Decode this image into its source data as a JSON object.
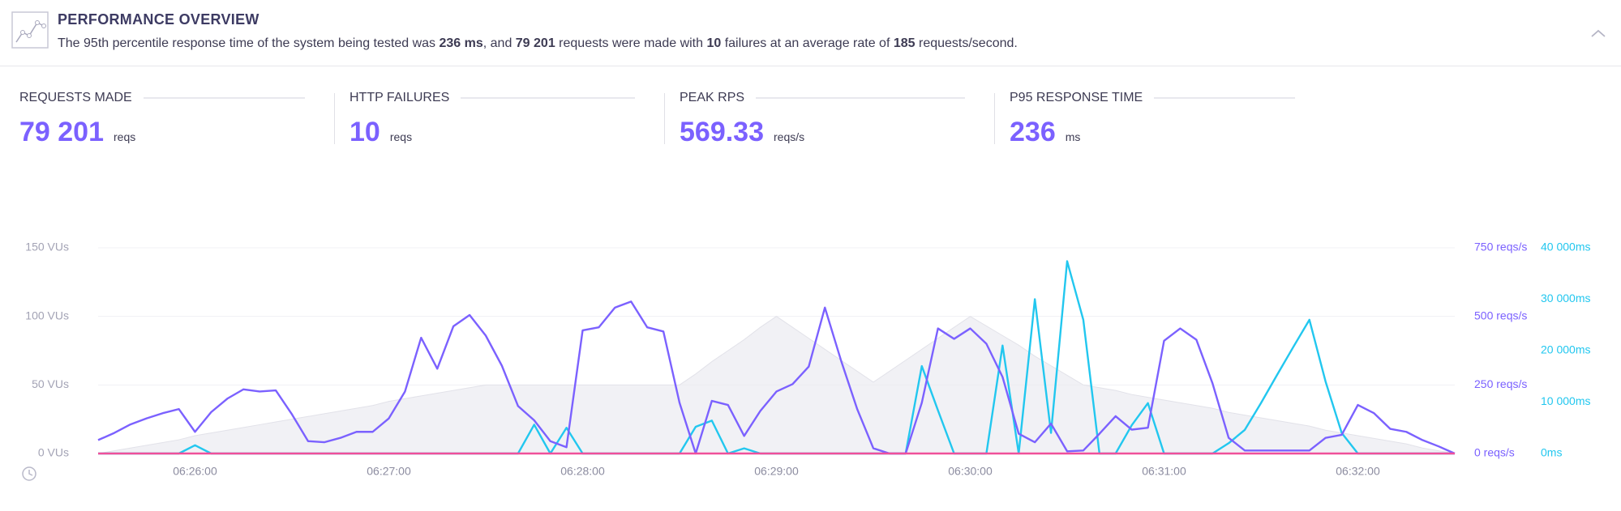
{
  "header": {
    "title": "PERFORMANCE OVERVIEW",
    "summary": [
      {
        "text": "The 95th percentile response time of the system being tested was ",
        "bold": false
      },
      {
        "text": "236 ms",
        "bold": true
      },
      {
        "text": ", and ",
        "bold": false
      },
      {
        "text": "79 201",
        "bold": true
      },
      {
        "text": " requests were made with ",
        "bold": false
      },
      {
        "text": "10",
        "bold": true
      },
      {
        "text": " failures at an average rate of ",
        "bold": false
      },
      {
        "text": "185",
        "bold": true
      },
      {
        "text": " requests/second.",
        "bold": false
      }
    ]
  },
  "stats": [
    {
      "label": "REQUESTS MADE",
      "value": "79 201",
      "unit": "reqs"
    },
    {
      "label": "HTTP FAILURES",
      "value": "10",
      "unit": "reqs"
    },
    {
      "label": "PEAK RPS",
      "value": "569.33",
      "unit": "reqs/s"
    },
    {
      "label": "P95 RESPONSE TIME",
      "value": "236",
      "unit": "ms"
    }
  ],
  "chart_data": {
    "type": "line",
    "x": [
      "06:25:30",
      "06:25:35",
      "06:25:40",
      "06:25:45",
      "06:25:50",
      "06:25:55",
      "06:26:00",
      "06:26:05",
      "06:26:10",
      "06:26:15",
      "06:26:20",
      "06:26:25",
      "06:26:30",
      "06:26:35",
      "06:26:40",
      "06:26:45",
      "06:26:50",
      "06:26:55",
      "06:27:00",
      "06:27:05",
      "06:27:10",
      "06:27:15",
      "06:27:20",
      "06:27:25",
      "06:27:30",
      "06:27:35",
      "06:27:40",
      "06:27:45",
      "06:27:50",
      "06:27:55",
      "06:28:00",
      "06:28:05",
      "06:28:10",
      "06:28:15",
      "06:28:20",
      "06:28:25",
      "06:28:30",
      "06:28:35",
      "06:28:40",
      "06:28:45",
      "06:28:50",
      "06:28:55",
      "06:29:00",
      "06:29:05",
      "06:29:10",
      "06:29:15",
      "06:29:20",
      "06:29:25",
      "06:29:30",
      "06:29:35",
      "06:29:40",
      "06:29:45",
      "06:29:50",
      "06:29:55",
      "06:30:00",
      "06:30:05",
      "06:30:10",
      "06:30:15",
      "06:30:20",
      "06:30:25",
      "06:30:30",
      "06:30:35",
      "06:30:40",
      "06:30:45",
      "06:30:50",
      "06:30:55",
      "06:31:00",
      "06:31:05",
      "06:31:10",
      "06:31:15",
      "06:31:20",
      "06:31:25",
      "06:31:30",
      "06:31:35",
      "06:31:40",
      "06:31:45",
      "06:31:50",
      "06:31:55",
      "06:32:00",
      "06:32:05",
      "06:32:10",
      "06:32:15",
      "06:32:20",
      "06:32:25",
      "06:32:30"
    ],
    "xlim": [
      "06:25:30",
      "06:32:30"
    ],
    "xticks": [
      "06:26:00",
      "06:27:00",
      "06:28:00",
      "06:29:00",
      "06:30:00",
      "06:31:00",
      "06:32:00"
    ],
    "ylim": [
      0,
      150
    ],
    "yticks": [
      {
        "value": 0,
        "label": "0 VUs"
      },
      {
        "value": 50,
        "label": "50 VUs"
      },
      {
        "value": 100,
        "label": "100 VUs"
      },
      {
        "value": 150,
        "label": "150 VUs"
      }
    ],
    "y2lim": [
      0,
      750
    ],
    "y2ticks": [
      {
        "value": 0,
        "label": "0 reqs/s"
      },
      {
        "value": 250,
        "label": "250 reqs/s"
      },
      {
        "value": 500,
        "label": "500 reqs/s"
      },
      {
        "value": 750,
        "label": "750 reqs/s"
      }
    ],
    "y3lim": [
      0,
      40000
    ],
    "y3ticks": [
      {
        "value": 0,
        "label": "0ms"
      },
      {
        "value": 10000,
        "label": "10 000ms"
      },
      {
        "value": 20000,
        "label": "20 000ms"
      },
      {
        "value": 30000,
        "label": "30 000ms"
      },
      {
        "value": 40000,
        "label": "40 000ms"
      }
    ],
    "grid": true,
    "series": [
      {
        "type": "area",
        "color": "#ececf1",
        "values": [
          0,
          2,
          4,
          6,
          8,
          10,
          13,
          15,
          17,
          19,
          21,
          23,
          25,
          27,
          29,
          31,
          33,
          35,
          38,
          40,
          42,
          44,
          46,
          48,
          50,
          50,
          50,
          50,
          50,
          50,
          50,
          50,
          50,
          50,
          50,
          50,
          50,
          58,
          67,
          75,
          83,
          92,
          100,
          92,
          84,
          76,
          68,
          60,
          52,
          60,
          68,
          76,
          84,
          92,
          100,
          93,
          86,
          79,
          71,
          64,
          57,
          50,
          48,
          46,
          43,
          41,
          39,
          37,
          35,
          33,
          30,
          28,
          26,
          24,
          22,
          20,
          17,
          15,
          13,
          11,
          9,
          7,
          4,
          2,
          0
        ]
      },
      {
        "type": "line",
        "color": "#22c7ef",
        "axis": "y3",
        "values": [
          0,
          0,
          0,
          0,
          0,
          0,
          1600,
          0,
          0,
          0,
          0,
          0,
          0,
          0,
          0,
          0,
          0,
          0,
          0,
          0,
          0,
          0,
          0,
          0,
          0,
          0,
          0,
          5600,
          0,
          5000,
          0,
          0,
          0,
          0,
          0,
          0,
          0,
          5200,
          6400,
          0,
          1000,
          0,
          0,
          0,
          0,
          0,
          0,
          0,
          0,
          0,
          0,
          17000,
          8400,
          0,
          0,
          0,
          21000,
          0,
          30000,
          4000,
          37400,
          26000,
          0,
          0,
          5500,
          9800,
          0,
          0,
          0,
          0,
          2000,
          4600,
          9800,
          15300,
          20700,
          26000,
          14000,
          4000,
          0,
          0,
          0,
          0,
          0,
          0,
          0
        ]
      },
      {
        "type": "line",
        "color": "#7b61ff",
        "axis": "y2",
        "values": [
          49,
          75,
          106,
          128,
          147,
          162,
          79,
          151,
          200,
          234,
          226,
          230,
          143,
          45,
          41,
          57,
          79,
          79,
          128,
          226,
          422,
          309,
          464,
          505,
          430,
          320,
          173,
          121,
          45,
          23,
          449,
          460,
          532,
          554,
          460,
          445,
          185,
          0,
          192,
          177,
          64,
          155,
          226,
          253,
          317,
          532,
          339,
          162,
          19,
          0,
          0,
          185,
          456,
          418,
          456,
          400,
          279,
          72,
          41,
          109,
          8,
          11,
          72,
          136,
          87,
          94,
          411,
          456,
          415,
          256,
          57,
          11,
          11,
          11,
          11,
          11,
          57,
          68,
          177,
          147,
          90,
          79,
          49,
          26,
          0
        ]
      },
      {
        "type": "line",
        "color": "#f0509a",
        "axis": "y2",
        "values": [
          0,
          0,
          0,
          0,
          0,
          0,
          0,
          0,
          0,
          0,
          0,
          0,
          0,
          0,
          0,
          0,
          0,
          0,
          0,
          0,
          0,
          0,
          0,
          0,
          0,
          0,
          0,
          0,
          0,
          0,
          0,
          0,
          0,
          0,
          0,
          0,
          0,
          0,
          0,
          0,
          0,
          0,
          0,
          0,
          0,
          0,
          0,
          0,
          0,
          0,
          0,
          0,
          0,
          0,
          0,
          0,
          0,
          0,
          0,
          0,
          0,
          0,
          0,
          0,
          0,
          0,
          0,
          0,
          0,
          0,
          0,
          0,
          0,
          0,
          0,
          0,
          0,
          0,
          0,
          0,
          0,
          0,
          0,
          0,
          0
        ]
      }
    ]
  }
}
